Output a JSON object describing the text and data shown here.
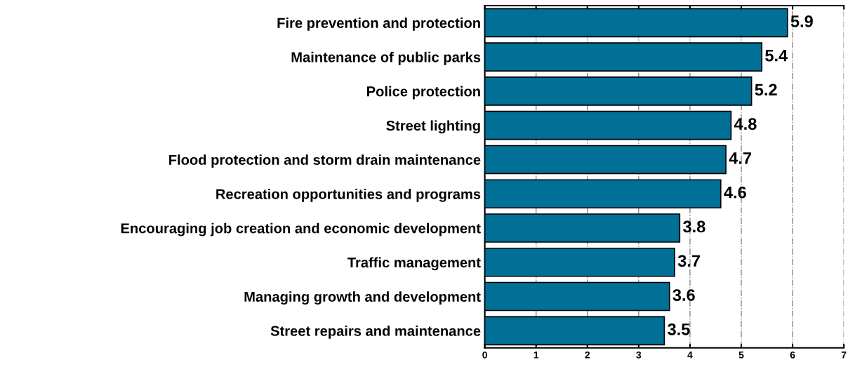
{
  "chart_data": {
    "type": "bar",
    "orientation": "horizontal",
    "categories": [
      "Fire prevention and protection",
      "Maintenance of public parks",
      "Police protection",
      "Street lighting",
      "Flood protection and storm drain maintenance",
      "Recreation opportunities and programs",
      "Encouraging job creation and economic development",
      "Traffic management",
      "Managing growth and development",
      "Street repairs and maintenance"
    ],
    "values": [
      5.9,
      5.4,
      5.2,
      4.8,
      4.7,
      4.6,
      3.8,
      3.7,
      3.6,
      3.5
    ],
    "color": "#007096",
    "xlim": [
      0,
      7
    ],
    "xticks": [
      0,
      1,
      2,
      3,
      4,
      5,
      6,
      7
    ],
    "grid": "x",
    "data_labels": true
  }
}
